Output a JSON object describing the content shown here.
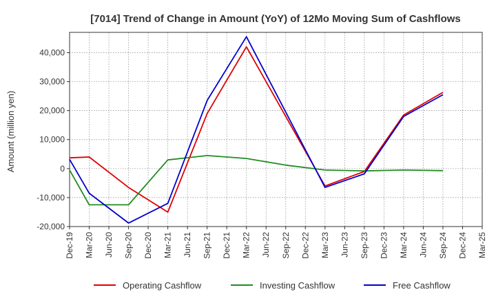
{
  "chart_data": {
    "type": "line",
    "title": "[7014]  Trend of Change in Amount (YoY) of 12Mo Moving Sum of Cashflows",
    "xlabel": "",
    "ylabel": "Amount (million yen)",
    "ylim": [
      -20000,
      47000
    ],
    "yticks": [
      -20000,
      -10000,
      0,
      10000,
      20000,
      30000,
      40000
    ],
    "ytick_labels": [
      "-20,000",
      "-10,000",
      "0",
      "10,000",
      "20,000",
      "30,000",
      "40,000"
    ],
    "categories": [
      "Dec-19",
      "Mar-20",
      "Jun-20",
      "Sep-20",
      "Dec-20",
      "Mar-21",
      "Jun-21",
      "Sep-21",
      "Dec-21",
      "Mar-22",
      "Jun-22",
      "Sep-22",
      "Dec-22",
      "Mar-23",
      "Jun-23",
      "Sep-23",
      "Dec-23",
      "Mar-24",
      "Jun-24",
      "Sep-24",
      "Dec-24",
      "Mar-25"
    ],
    "grid": true,
    "legend_position": "bottom",
    "series": [
      {
        "name": "Operating Cashflow",
        "color": "#dd0000",
        "values": [
          3700,
          4000,
          null,
          -6500,
          null,
          -15000,
          null,
          19000,
          null,
          42000,
          null,
          null,
          null,
          -6000,
          null,
          -1000,
          null,
          18500,
          null,
          26300,
          null,
          null
        ]
      },
      {
        "name": "Investing Cashflow",
        "color": "#228b22",
        "values": [
          -500,
          -12500,
          null,
          -12500,
          null,
          3000,
          null,
          4500,
          null,
          3500,
          null,
          1200,
          null,
          -500,
          null,
          -800,
          null,
          -500,
          null,
          -700,
          null,
          null
        ]
      },
      {
        "name": "Free Cashflow",
        "color": "#0000cc",
        "values": [
          3200,
          -8500,
          null,
          -18800,
          null,
          -12000,
          null,
          23500,
          null,
          45500,
          null,
          null,
          null,
          -6500,
          null,
          -1800,
          null,
          18000,
          null,
          25500,
          null,
          null
        ]
      }
    ]
  }
}
